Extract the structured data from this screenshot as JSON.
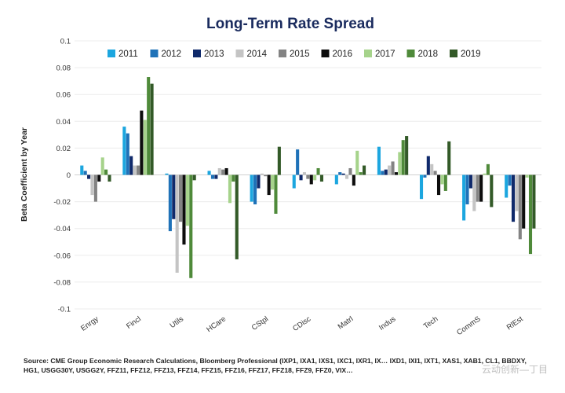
{
  "chart_data": {
    "type": "bar",
    "title": "Long-Term Rate Spread",
    "ylabel": "Beta Coefficient by Year",
    "xlabel": "",
    "ylim": [
      -0.1,
      0.1
    ],
    "yticks": [
      "0.1",
      "0.08",
      "0.06",
      "0.04",
      "0.02",
      "0",
      "-0.02",
      "-0.04",
      "-0.06",
      "-0.08",
      "-0.1"
    ],
    "ytick_values": [
      0.1,
      0.08,
      0.06,
      0.04,
      0.02,
      0,
      -0.02,
      -0.04,
      -0.06,
      -0.08,
      -0.1
    ],
    "grid": true,
    "legend_position": "top",
    "categories": [
      "Enrgy",
      "Fincl",
      "Utils",
      "HCare",
      "CStpl",
      "CDisc",
      "Matrl",
      "Indus",
      "Tech",
      "CommS",
      "RlEst"
    ],
    "series": [
      {
        "name": "2011",
        "color": "#1ca6df",
        "values": [
          0.007,
          0.036,
          0.001,
          0.003,
          -0.02,
          -0.01,
          -0.007,
          0.021,
          -0.018,
          -0.034,
          -0.017
        ]
      },
      {
        "name": "2012",
        "color": "#1f72b8",
        "values": [
          0.003,
          0.031,
          -0.042,
          -0.003,
          -0.022,
          0.019,
          0.002,
          0.003,
          -0.002,
          -0.022,
          -0.008
        ]
      },
      {
        "name": "2013",
        "color": "#102a6b",
        "values": [
          -0.003,
          0.014,
          -0.033,
          -0.003,
          -0.01,
          -0.004,
          0.001,
          0.004,
          0.014,
          -0.01,
          -0.035
        ]
      },
      {
        "name": "2014",
        "color": "#c4c4c4",
        "values": [
          -0.015,
          0.007,
          -0.073,
          0.005,
          0.001,
          0.002,
          -0.003,
          0.007,
          0.008,
          -0.027,
          -0.027
        ]
      },
      {
        "name": "2015",
        "color": "#838383",
        "values": [
          -0.02,
          0.007,
          -0.035,
          0.004,
          -0.001,
          -0.003,
          0.005,
          0.01,
          0.003,
          -0.02,
          -0.048
        ]
      },
      {
        "name": "2016",
        "color": "#0d0d0d",
        "values": [
          -0.005,
          0.048,
          -0.052,
          0.005,
          -0.015,
          -0.007,
          -0.008,
          0.002,
          -0.015,
          -0.02,
          -0.04
        ]
      },
      {
        "name": "2017",
        "color": "#a6d38b",
        "values": [
          0.013,
          0.041,
          -0.038,
          -0.021,
          -0.011,
          -0.004,
          0.018,
          0.017,
          -0.007,
          0.001,
          -0.002
        ]
      },
      {
        "name": "2018",
        "color": "#4f8a3a",
        "values": [
          0.004,
          0.073,
          -0.077,
          -0.005,
          -0.029,
          0.005,
          0.002,
          0.026,
          -0.012,
          0.008,
          -0.059
        ]
      },
      {
        "name": "2019",
        "color": "#335a28",
        "values": [
          -0.005,
          0.068,
          -0.004,
          -0.063,
          0.021,
          -0.005,
          0.007,
          0.029,
          0.025,
          -0.024,
          -0.04
        ]
      }
    ]
  },
  "footer": {
    "source": "Source: CME Group Economic Research Calculations, Bloomberg Professional (IXP1, IXA1, IXS1, IXC1, IXR1, IX… IXD1, IXI1, IXT1, XAS1, XAB1, CL1, BBDXY, HG1, USGG30Y, USGG2Y, FFZ11, FFZ12, FFZ13, FFZ14, FFZ15, FFZ16, FFZ17, FFZ18, FFZ9, FFZ0, VIX…"
  },
  "watermark": {
    "text": "云动创新—丁目"
  }
}
